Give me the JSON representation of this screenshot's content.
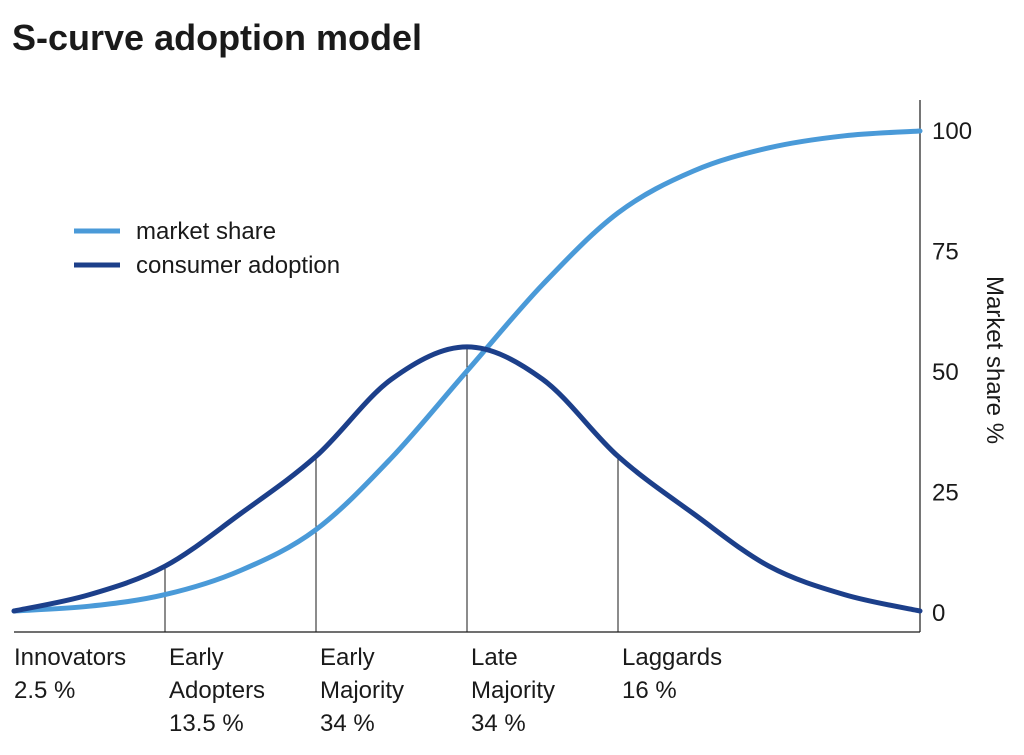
{
  "chart_data": {
    "type": "line",
    "title": "S-curve adoption model",
    "ylabel": "Market share %",
    "ylim": [
      0,
      100
    ],
    "yticks": [
      0,
      25,
      50,
      75,
      100
    ],
    "ytick_labels": [
      "0",
      "25",
      "50",
      "75",
      "100"
    ],
    "xlim": [
      -3,
      3
    ],
    "legend_position": "upper-left",
    "series": [
      {
        "name": "market share",
        "color": "#4a9ad8",
        "x": [
          -3,
          -2.5,
          -2,
          -1.5,
          -1,
          -0.5,
          0,
          0.5,
          1,
          1.5,
          2,
          2.5,
          3
        ],
        "y": [
          0.2,
          1.2,
          3.6,
          8.6,
          17.1,
          32,
          50,
          67.9,
          82.8,
          91.5,
          96.3,
          98.8,
          99.8
        ]
      },
      {
        "name": "consumer adoption",
        "color": "#1c3f8a",
        "x": [
          -3,
          -2.5,
          -2,
          -1.5,
          -1,
          -0.5,
          0,
          0.5,
          1,
          1.5,
          2,
          2.5,
          3
        ],
        "y": [
          0.2,
          3.6,
          9.5,
          20.4,
          32.3,
          48.3,
          55,
          48.3,
          32.3,
          20.4,
          9.5,
          3.6,
          0.2
        ]
      }
    ],
    "divisions_x": [
      -2,
      -1,
      0,
      1
    ],
    "segments": [
      {
        "lines": [
          "Innovators",
          "2.5 %"
        ],
        "x_start": -3
      },
      {
        "lines": [
          "Early",
          "Adopters",
          "13.5 %"
        ],
        "x_start": -2
      },
      {
        "lines": [
          "Early",
          "Majority",
          "34 %"
        ],
        "x_start": -1
      },
      {
        "lines": [
          "Late",
          "Majority",
          "34 %"
        ],
        "x_start": 0
      },
      {
        "lines": [
          "Laggards",
          "16 %"
        ],
        "x_start": 1
      }
    ]
  }
}
